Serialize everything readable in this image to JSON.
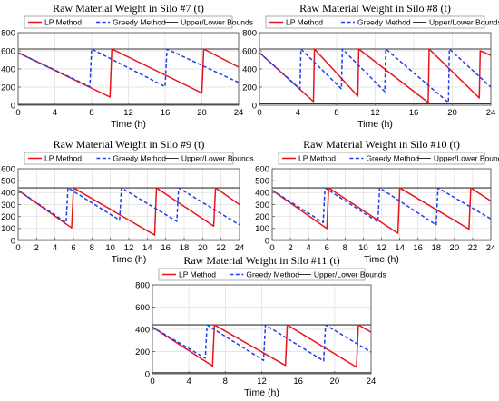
{
  "colors": {
    "lp": "#e8131b",
    "greedy": "#1e3ee8",
    "bounds": "#333333",
    "grid": "#dedede",
    "axes": "#555555"
  },
  "chart_data": [
    {
      "type": "line",
      "title": "Raw Material Weight in Silo #7 (t)",
      "xlabel": "Time (h)",
      "ylabel": "",
      "xlim": [
        0,
        24
      ],
      "ylim": [
        0,
        800
      ],
      "xticks": [
        "0",
        "4",
        "8",
        "12",
        "16",
        "20",
        "24"
      ],
      "yticks": [
        "0",
        "200",
        "400",
        "600",
        "800"
      ],
      "grid": true,
      "legend_position": "top",
      "legend": [
        "LP Method",
        "Greedy Method",
        "Upper/Lower Bounds"
      ],
      "bounds": [
        10,
        620
      ],
      "series": [
        {
          "name": "LP Method",
          "style": "solid",
          "points": [
            [
              0,
              580
            ],
            [
              10,
              90
            ],
            [
              10.2,
              620
            ],
            [
              20,
              135
            ],
            [
              20.2,
              620
            ],
            [
              24,
              420
            ]
          ]
        },
        {
          "name": "Greedy Method",
          "style": "dashed",
          "points": [
            [
              0,
              580
            ],
            [
              7.8,
              205
            ],
            [
              8,
              620
            ],
            [
              16,
              205
            ],
            [
              16.2,
              620
            ],
            [
              24,
              250
            ]
          ]
        }
      ]
    },
    {
      "type": "line",
      "title": "Raw Material Weight in Silo #8 (t)",
      "xlabel": "Time (h)",
      "ylabel": "",
      "xlim": [
        0,
        24
      ],
      "ylim": [
        0,
        800
      ],
      "xticks": [
        "0",
        "4",
        "8",
        "12",
        "16",
        "20",
        "24"
      ],
      "yticks": [
        "0",
        "200",
        "400",
        "600",
        "800"
      ],
      "grid": true,
      "legend_position": "top",
      "legend": [
        "LP Method",
        "Greedy Method",
        "Upper/Lower Bounds"
      ],
      "bounds": [
        15,
        620
      ],
      "series": [
        {
          "name": "LP Method",
          "style": "solid",
          "points": [
            [
              0,
              580
            ],
            [
              5.6,
              40
            ],
            [
              5.7,
              620
            ],
            [
              10.2,
              100
            ],
            [
              10.3,
              620
            ],
            [
              17.5,
              30
            ],
            [
              17.6,
              620
            ],
            [
              22.8,
              80
            ],
            [
              22.9,
              600
            ],
            [
              24,
              550
            ]
          ]
        },
        {
          "name": "Greedy Method",
          "style": "dashed",
          "points": [
            [
              0,
              580
            ],
            [
              4.2,
              180
            ],
            [
              4.3,
              620
            ],
            [
              8.5,
              180
            ],
            [
              8.6,
              620
            ],
            [
              13,
              150
            ],
            [
              13.1,
              620
            ],
            [
              19.6,
              30
            ],
            [
              19.7,
              620
            ],
            [
              24,
              200
            ]
          ]
        }
      ]
    },
    {
      "type": "line",
      "title": "Raw Material Weight in Silo #9 (t)",
      "xlabel": "Time (h)",
      "ylabel": "",
      "xlim": [
        0,
        24
      ],
      "ylim": [
        0,
        600
      ],
      "xticks": [
        "0",
        "2",
        "4",
        "6",
        "8",
        "10",
        "12",
        "14",
        "16",
        "18",
        "20",
        "22",
        "24"
      ],
      "yticks": [
        "0",
        "100",
        "200",
        "300",
        "400",
        "500",
        "600"
      ],
      "grid": true,
      "legend_position": "top",
      "legend": [
        "LP Method",
        "Greedy Method",
        "Upper/Lower Bounds"
      ],
      "bounds": [
        5,
        440
      ],
      "series": [
        {
          "name": "LP Method",
          "style": "solid",
          "points": [
            [
              0,
              420
            ],
            [
              5.8,
              105
            ],
            [
              6,
              440
            ],
            [
              14.8,
              45
            ],
            [
              15,
              440
            ],
            [
              21.2,
              120
            ],
            [
              21.4,
              440
            ],
            [
              24,
              300
            ]
          ]
        },
        {
          "name": "Greedy Method",
          "style": "dashed",
          "points": [
            [
              0,
              420
            ],
            [
              5.2,
              150
            ],
            [
              5.4,
              440
            ],
            [
              11,
              170
            ],
            [
              11.2,
              440
            ],
            [
              17.2,
              160
            ],
            [
              17.4,
              440
            ],
            [
              24,
              130
            ]
          ]
        }
      ]
    },
    {
      "type": "line",
      "title": "Raw Material Weight in Silo #10 (t)",
      "xlabel": "Time (h)",
      "ylabel": "",
      "xlim": [
        0,
        24
      ],
      "ylim": [
        0,
        600
      ],
      "xticks": [
        "0",
        "2",
        "4",
        "6",
        "8",
        "10",
        "12",
        "14",
        "16",
        "18",
        "20",
        "22",
        "24"
      ],
      "yticks": [
        "0",
        "100",
        "200",
        "300",
        "400",
        "500",
        "600"
      ],
      "grid": true,
      "legend_position": "top",
      "legend": [
        "LP Method",
        "Greedy Method",
        "Upper/Lower Bounds"
      ],
      "bounds": [
        5,
        440
      ],
      "series": [
        {
          "name": "LP Method",
          "style": "solid",
          "points": [
            [
              0,
              420
            ],
            [
              6,
              100
            ],
            [
              6.2,
              440
            ],
            [
              13.8,
              60
            ],
            [
              14,
              440
            ],
            [
              21.6,
              95
            ],
            [
              21.8,
              440
            ],
            [
              24,
              330
            ]
          ]
        },
        {
          "name": "Greedy Method",
          "style": "dashed",
          "points": [
            [
              0,
              420
            ],
            [
              5.6,
              150
            ],
            [
              5.8,
              440
            ],
            [
              11.6,
              155
            ],
            [
              11.8,
              440
            ],
            [
              18,
              130
            ],
            [
              18.2,
              440
            ],
            [
              24,
              180
            ]
          ]
        }
      ]
    },
    {
      "type": "line",
      "title": "Raw Material Weight in Silo #11 (t)",
      "xlabel": "Time (h)",
      "ylabel": "",
      "xlim": [
        0,
        24
      ],
      "ylim": [
        0,
        800
      ],
      "xticks": [
        "0",
        "4",
        "8",
        "12",
        "16",
        "20",
        "24"
      ],
      "yticks": [
        "0",
        "200",
        "400",
        "600",
        "800"
      ],
      "grid": true,
      "legend_position": "top",
      "legend": [
        "LP Method",
        "Greedy Method",
        "Upper/Lower Bounds"
      ],
      "bounds": [
        10,
        440
      ],
      "series": [
        {
          "name": "LP Method",
          "style": "solid",
          "points": [
            [
              0,
              420
            ],
            [
              6.6,
              70
            ],
            [
              6.8,
              440
            ],
            [
              14.6,
              75
            ],
            [
              14.8,
              440
            ],
            [
              22.4,
              60
            ],
            [
              22.6,
              440
            ],
            [
              24,
              375
            ]
          ]
        },
        {
          "name": "Greedy Method",
          "style": "dashed",
          "points": [
            [
              0,
              420
            ],
            [
              5.8,
              140
            ],
            [
              6,
              440
            ],
            [
              12.2,
              120
            ],
            [
              12.4,
              440
            ],
            [
              18.8,
              115
            ],
            [
              19,
              440
            ],
            [
              24,
              195
            ]
          ]
        }
      ]
    }
  ]
}
